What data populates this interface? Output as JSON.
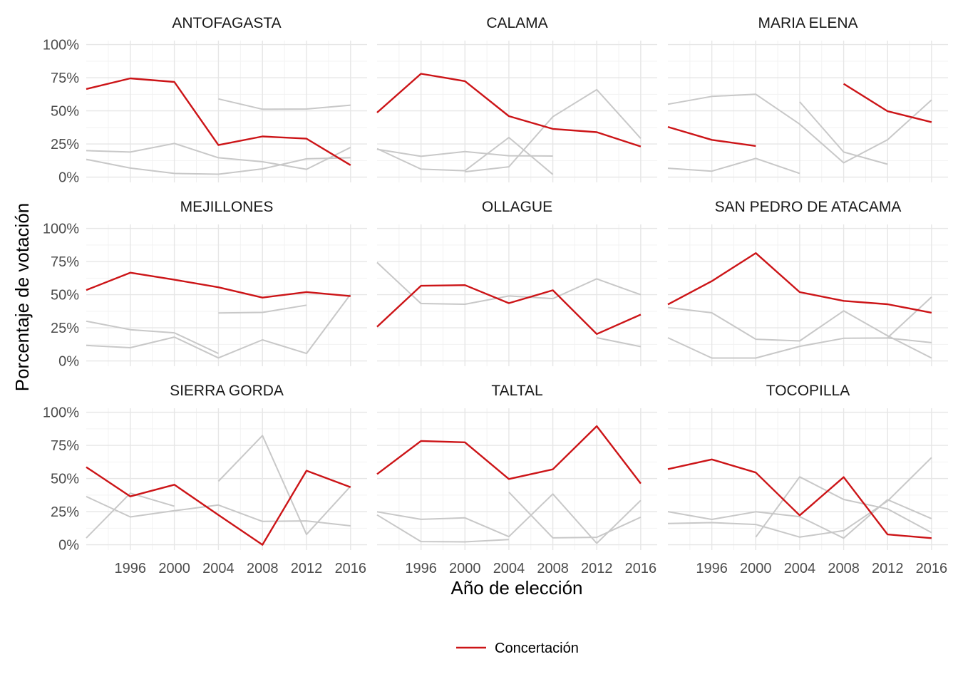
{
  "chart_data": {
    "type": "line",
    "xlabel": "Año de elección",
    "ylabel": "Porcentaje de votación",
    "x_ticks": [
      1996,
      2000,
      2004,
      2008,
      2012,
      2016
    ],
    "y_ticks": [
      0,
      25,
      50,
      75,
      100
    ],
    "y_tick_labels": [
      "0%",
      "25%",
      "50%",
      "75%",
      "100%"
    ],
    "xlim": [
      1992,
      2017.5
    ],
    "ylim": [
      -4,
      103
    ],
    "grid": true,
    "legend": {
      "position": "bottom",
      "entries": [
        "Concertación"
      ]
    },
    "colors": {
      "highlight": "#cc1417",
      "other": "#c8c8c8",
      "grid_major": "#e6e6e6",
      "grid_minor": "#f2f2f2"
    },
    "panels": [
      {
        "title": "ANTOFAGASTA",
        "highlight": [
          [
            1992,
            66.5
          ],
          [
            1996,
            74.5
          ],
          [
            2000,
            71.8
          ],
          [
            2004,
            24.2
          ],
          [
            2008,
            30.7
          ],
          [
            2012,
            29.0
          ],
          [
            2016,
            9.0
          ]
        ],
        "others": [
          [
            [
              2004,
              59.0
            ],
            [
              2008,
              51.2
            ],
            [
              2012,
              51.4
            ],
            [
              2016,
              54.3
            ]
          ],
          [
            [
              1992,
              20.0
            ],
            [
              1996,
              18.9
            ],
            [
              2000,
              25.4
            ],
            [
              2004,
              14.6
            ],
            [
              2008,
              11.6
            ],
            [
              2012,
              5.9
            ],
            [
              2016,
              22.4
            ]
          ],
          [
            [
              1992,
              13.4
            ],
            [
              1996,
              6.8
            ],
            [
              2000,
              2.8
            ],
            [
              2004,
              2.2
            ],
            [
              2008,
              6.2
            ],
            [
              2012,
              13.8
            ],
            [
              2016,
              14.6
            ]
          ]
        ]
      },
      {
        "title": "CALAMA",
        "highlight": [
          [
            1992,
            48.7
          ],
          [
            1996,
            78.0
          ],
          [
            2000,
            72.4
          ],
          [
            2004,
            46.0
          ],
          [
            2008,
            36.4
          ],
          [
            2012,
            33.9
          ],
          [
            2016,
            23.1
          ]
        ],
        "others": [
          [
            [
              1992,
              21.0
            ],
            [
              1996,
              15.7
            ],
            [
              2000,
              19.3
            ],
            [
              2004,
              16.1
            ],
            [
              2008,
              15.9
            ]
          ],
          [
            [
              1992,
              21.5
            ],
            [
              1996,
              6.0
            ],
            [
              2000,
              4.8
            ],
            [
              2004,
              29.9
            ],
            [
              2008,
              2.0
            ]
          ],
          [
            [
              2000,
              4.0
            ],
            [
              2004,
              7.8
            ],
            [
              2008,
              45.6
            ],
            [
              2012,
              66.0
            ],
            [
              2016,
              29.2
            ]
          ]
        ]
      },
      {
        "title": "MARIA ELENA",
        "highlight_segments": [
          [
            [
              1992,
              37.9
            ],
            [
              1996,
              28.1
            ],
            [
              2000,
              23.5
            ]
          ],
          [
            [
              2008,
              70.4
            ],
            [
              2012,
              49.7
            ],
            [
              2016,
              41.5
            ]
          ]
        ],
        "others": [
          [
            [
              1992,
              55.0
            ],
            [
              1996,
              60.9
            ],
            [
              2000,
              62.5
            ],
            [
              2004,
              40.0
            ],
            [
              2008,
              10.8
            ],
            [
              2012,
              28.2
            ],
            [
              2016,
              58.2
            ]
          ],
          [
            [
              1992,
              6.7
            ],
            [
              1996,
              4.5
            ],
            [
              2000,
              14.1
            ],
            [
              2004,
              2.8
            ]
          ],
          [
            [
              2004,
              56.8
            ],
            [
              2008,
              18.9
            ],
            [
              2012,
              9.7
            ]
          ]
        ]
      },
      {
        "title": "MEJILLONES",
        "highlight": [
          [
            1992,
            53.5
          ],
          [
            1996,
            66.6
          ],
          [
            2000,
            61.3
          ],
          [
            2004,
            55.6
          ],
          [
            2008,
            47.8
          ],
          [
            2012,
            52.0
          ],
          [
            2016,
            48.9
          ]
        ],
        "others": [
          [
            [
              1992,
              30.0
            ],
            [
              1996,
              23.6
            ],
            [
              2000,
              21.2
            ],
            [
              2004,
              5.6
            ]
          ],
          [
            [
              1992,
              11.7
            ],
            [
              1996,
              10.0
            ],
            [
              2000,
              18.0
            ],
            [
              2004,
              2.3
            ],
            [
              2008,
              15.9
            ],
            [
              2012,
              5.6
            ],
            [
              2016,
              50.3
            ]
          ],
          [
            [
              2004,
              36.2
            ],
            [
              2008,
              36.6
            ],
            [
              2012,
              42.1
            ]
          ]
        ]
      },
      {
        "title": "OLLAGUE",
        "highlight": [
          [
            1992,
            25.8
          ],
          [
            1996,
            56.7
          ],
          [
            2000,
            57.2
          ],
          [
            2004,
            43.6
          ],
          [
            2008,
            53.3
          ],
          [
            2012,
            20.3
          ],
          [
            2016,
            35.0
          ]
        ],
        "others": [
          [
            [
              1992,
              74.3
            ],
            [
              1996,
              43.3
            ],
            [
              2000,
              42.8
            ],
            [
              2004,
              49.0
            ],
            [
              2008,
              47.0
            ],
            [
              2012,
              61.9
            ],
            [
              2016,
              50.0
            ]
          ],
          [
            [
              2012,
              17.5
            ],
            [
              2016,
              10.8
            ]
          ]
        ]
      },
      {
        "title": "SAN PEDRO DE ATACAMA",
        "highlight": [
          [
            1992,
            42.6
          ],
          [
            1996,
            60.2
          ],
          [
            2000,
            81.4
          ],
          [
            2004,
            51.9
          ],
          [
            2008,
            45.3
          ],
          [
            2012,
            42.8
          ],
          [
            2016,
            36.4
          ]
        ],
        "others": [
          [
            [
              1992,
              40.3
            ],
            [
              1996,
              36.3
            ],
            [
              2000,
              16.4
            ],
            [
              2004,
              15.1
            ],
            [
              2008,
              37.8
            ],
            [
              2012,
              19.0
            ],
            [
              2016,
              2.2
            ]
          ],
          [
            [
              1992,
              17.5
            ],
            [
              1996,
              2.2
            ],
            [
              2000,
              2.2
            ],
            [
              2004,
              11.0
            ],
            [
              2008,
              17.1
            ],
            [
              2012,
              17.3
            ],
            [
              2016,
              13.8
            ]
          ],
          [
            [
              2012,
              17.5
            ],
            [
              2016,
              48.2
            ]
          ]
        ]
      },
      {
        "title": "SIERRA GORDA",
        "highlight": [
          [
            1992,
            58.6
          ],
          [
            1996,
            36.5
          ],
          [
            2000,
            45.3
          ],
          [
            2004,
            22.5
          ],
          [
            2008,
            0.0
          ],
          [
            2012,
            55.9
          ],
          [
            2016,
            43.5
          ]
        ],
        "others": [
          [
            [
              1992,
              36.4
            ],
            [
              1996,
              21.0
            ],
            [
              2000,
              25.7
            ],
            [
              2004,
              30.0
            ],
            [
              2008,
              17.6
            ],
            [
              2012,
              18.0
            ],
            [
              2016,
              14.3
            ]
          ],
          [
            [
              1992,
              5.1
            ],
            [
              1996,
              38.9
            ],
            [
              2000,
              29.1
            ]
          ],
          [
            [
              2004,
              47.9
            ],
            [
              2008,
              82.4
            ],
            [
              2012,
              7.8
            ],
            [
              2016,
              44.2
            ]
          ]
        ]
      },
      {
        "title": "TALTAL",
        "highlight": [
          [
            1992,
            53.3
          ],
          [
            1996,
            78.3
          ],
          [
            2000,
            77.3
          ],
          [
            2004,
            49.6
          ],
          [
            2008,
            56.9
          ],
          [
            2012,
            89.5
          ],
          [
            2016,
            46.2
          ]
        ],
        "others": [
          [
            [
              1992,
              24.9
            ],
            [
              1996,
              19.2
            ],
            [
              2000,
              20.3
            ],
            [
              2004,
              6.1
            ],
            [
              2008,
              38.3
            ],
            [
              2012,
              1.1
            ],
            [
              2016,
              33.5
            ]
          ],
          [
            [
              1992,
              22.5
            ],
            [
              1996,
              2.4
            ],
            [
              2000,
              2.2
            ],
            [
              2004,
              3.9
            ]
          ],
          [
            [
              2004,
              39.7
            ],
            [
              2008,
              5.2
            ],
            [
              2012,
              5.6
            ],
            [
              2016,
              20.8
            ]
          ]
        ]
      },
      {
        "title": "TOCOPILLA",
        "highlight": [
          [
            1992,
            57.1
          ],
          [
            1996,
            64.4
          ],
          [
            2000,
            54.5
          ],
          [
            2004,
            22.2
          ],
          [
            2008,
            51.0
          ],
          [
            2012,
            7.8
          ],
          [
            2016,
            5.0
          ]
        ],
        "others": [
          [
            [
              1992,
              25.0
            ],
            [
              1996,
              19.1
            ],
            [
              2000,
              24.9
            ],
            [
              2004,
              21.2
            ],
            [
              2008,
              5.0
            ],
            [
              2012,
              34.0
            ],
            [
              2016,
              19.7
            ]
          ],
          [
            [
              1992,
              16.0
            ],
            [
              1996,
              16.7
            ],
            [
              2000,
              15.3
            ],
            [
              2004,
              5.8
            ],
            [
              2008,
              10.6
            ],
            [
              2012,
              33.0
            ],
            [
              2016,
              65.8
            ]
          ],
          [
            [
              2000,
              5.8
            ],
            [
              2004,
              51.2
            ],
            [
              2008,
              34.2
            ],
            [
              2012,
              27.0
            ],
            [
              2016,
              9.2
            ]
          ]
        ]
      }
    ]
  }
}
